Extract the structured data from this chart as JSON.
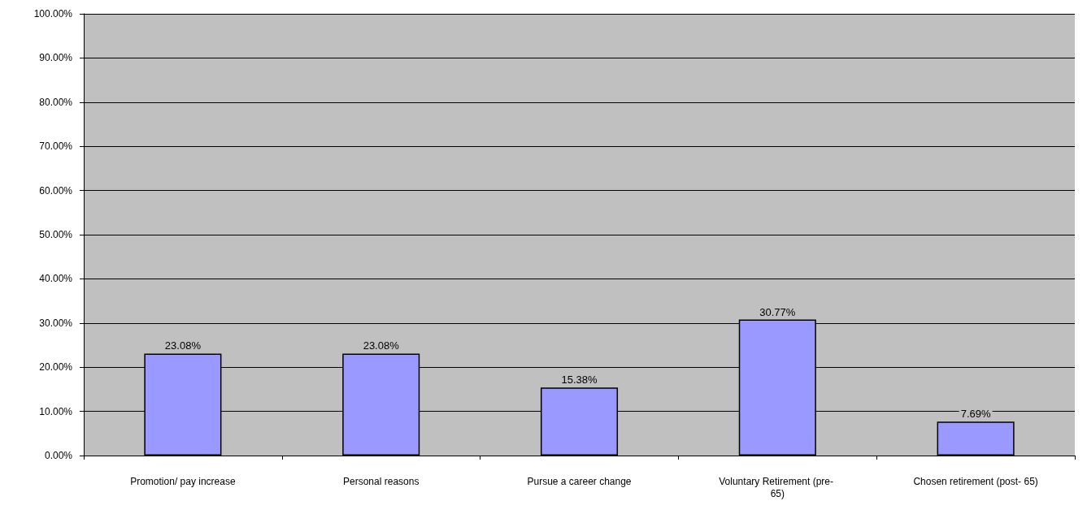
{
  "chart_data": {
    "type": "bar",
    "categories": [
      "Promotion/ pay increase",
      "Personal reasons",
      "Pursue a career change",
      "Voluntary Retirement (pre- 65)",
      "Chosen retirement (post- 65)"
    ],
    "values": [
      23.08,
      23.08,
      15.38,
      30.77,
      7.69
    ],
    "value_labels": [
      "23.08%",
      "23.08%",
      "15.38%",
      "30.77%",
      "7.69%"
    ],
    "color": "#9999ff",
    "ylim": [
      0,
      100
    ],
    "yticks": [
      {
        "value": 0,
        "label": "0.00%"
      },
      {
        "value": 10,
        "label": "10.00%"
      },
      {
        "value": 20,
        "label": "20.00%"
      },
      {
        "value": 30,
        "label": "30.00%"
      },
      {
        "value": 40,
        "label": "40.00%"
      },
      {
        "value": 50,
        "label": "50.00%"
      },
      {
        "value": 60,
        "label": "60.00%"
      },
      {
        "value": 70,
        "label": "70.00%"
      },
      {
        "value": 80,
        "label": "80.00%"
      },
      {
        "value": 90,
        "label": "90.00%"
      },
      {
        "value": 100,
        "label": "100.00%"
      }
    ],
    "grid": true
  }
}
